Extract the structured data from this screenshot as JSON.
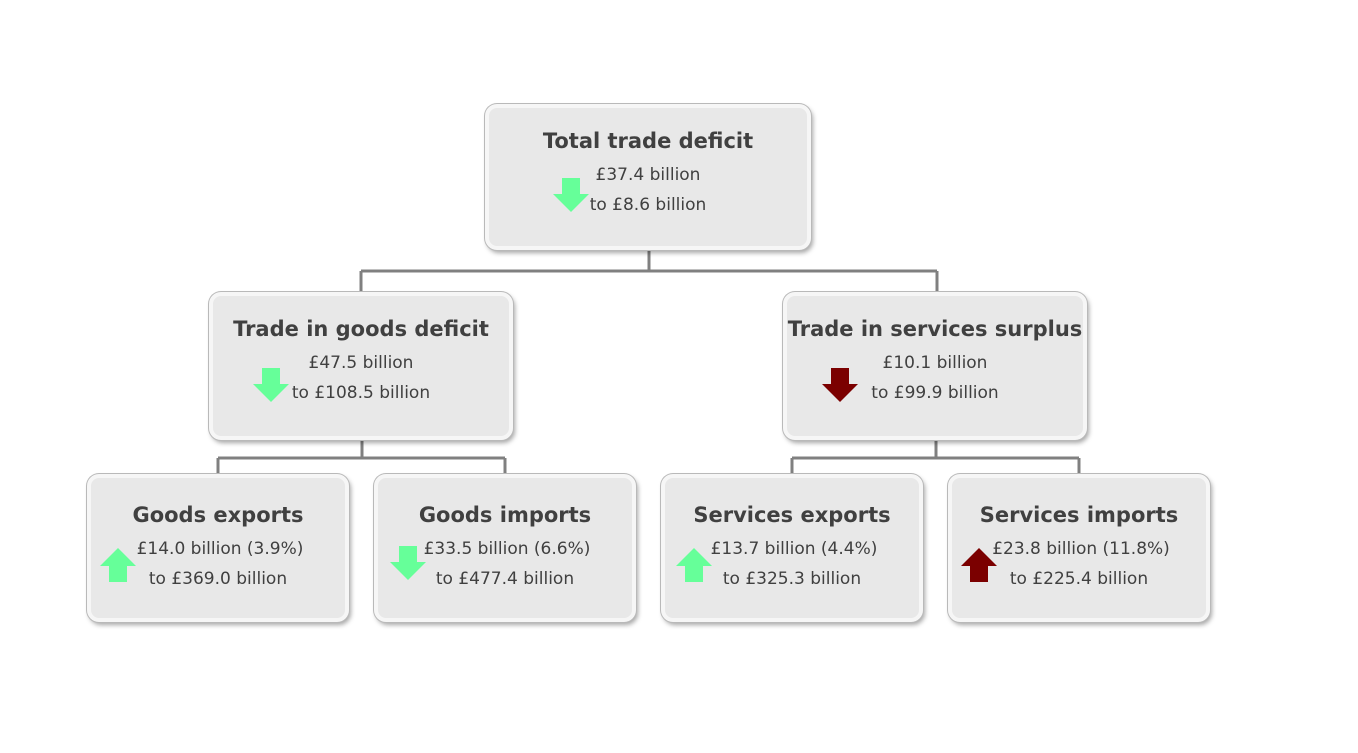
{
  "colors": {
    "decrease_good": "#66ff99",
    "increase_good": "#66ff99",
    "adverse": "#7b0000",
    "box_fill": "#e8e8e8",
    "connector": "#808080"
  },
  "total": {
    "title": "Total trade deficit",
    "change": "£37.4 billion",
    "level": "to £8.6 billion",
    "arrow": "down-arrow-green"
  },
  "goods": {
    "title": "Trade in goods deficit",
    "change": "£47.5 billion",
    "level": "to £108.5 billion",
    "arrow": "down-arrow-green"
  },
  "services": {
    "title": "Trade in services surplus",
    "change": "£10.1 billion",
    "level": "to £99.9 billion",
    "arrow": "down-arrow-red"
  },
  "goods_exports": {
    "title": "Goods exports",
    "change": "£14.0 billion (3.9%)",
    "level": "to £369.0 billion",
    "arrow": "up-arrow-green"
  },
  "goods_imports": {
    "title": "Goods imports",
    "change": "£33.5 billion (6.6%)",
    "level": "to £477.4 billion",
    "arrow": "down-arrow-green"
  },
  "services_exports": {
    "title": "Services exports",
    "change": "£13.7 billion (4.4%)",
    "level": "to £325.3 billion",
    "arrow": "up-arrow-green"
  },
  "services_imports": {
    "title": "Services imports",
    "change": "£23.8 billion (11.8%)",
    "level": "to £225.4 billion",
    "arrow": "up-arrow-red"
  }
}
